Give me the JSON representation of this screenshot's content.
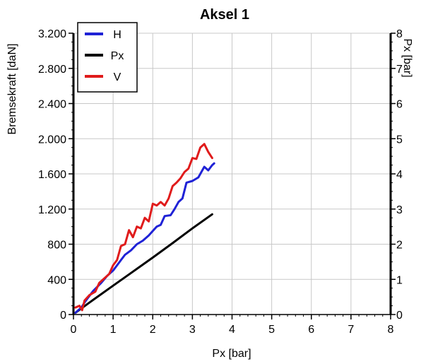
{
  "chart_data": {
    "type": "line",
    "title": "Aksel 1",
    "xlabel": "Px [bar]",
    "ylabel": "Bremsekraft [daN]",
    "y2label": "Px [bar]",
    "xlim": [
      0,
      8
    ],
    "ylim": [
      0,
      3200
    ],
    "y2lim": [
      0,
      8
    ],
    "grid": true,
    "legend_position": "top-left",
    "x_ticks": [
      {
        "value": 0,
        "label": "0"
      },
      {
        "value": 1,
        "label": "1"
      },
      {
        "value": 2,
        "label": "2"
      },
      {
        "value": 3,
        "label": "3"
      },
      {
        "value": 4,
        "label": "4"
      },
      {
        "value": 5,
        "label": "5"
      },
      {
        "value": 6,
        "label": "6"
      },
      {
        "value": 7,
        "label": "7"
      },
      {
        "value": 8,
        "label": "8"
      }
    ],
    "y_ticks": [
      {
        "value": 0,
        "label": "0"
      },
      {
        "value": 400,
        "label": "400"
      },
      {
        "value": 800,
        "label": "800"
      },
      {
        "value": 1200,
        "label": "1.200"
      },
      {
        "value": 1600,
        "label": "1.600"
      },
      {
        "value": 2000,
        "label": "2.000"
      },
      {
        "value": 2400,
        "label": "2.400"
      },
      {
        "value": 2800,
        "label": "2.800"
      },
      {
        "value": 3200,
        "label": "3.200"
      }
    ],
    "y2_ticks": [
      {
        "value": 0,
        "label": "0"
      },
      {
        "value": 1,
        "label": "1"
      },
      {
        "value": 2,
        "label": "2"
      },
      {
        "value": 3,
        "label": "3"
      },
      {
        "value": 4,
        "label": "4"
      },
      {
        "value": 5,
        "label": "5"
      },
      {
        "value": 6,
        "label": "6"
      },
      {
        "value": 7,
        "label": "7"
      },
      {
        "value": 8,
        "label": "8"
      }
    ],
    "series": [
      {
        "name": "H",
        "color": "#1f22d6",
        "axis": "left",
        "x": [
          0.05,
          0.2,
          0.3,
          0.5,
          0.7,
          0.85,
          1.0,
          1.1,
          1.2,
          1.3,
          1.45,
          1.6,
          1.75,
          1.9,
          2.0,
          2.1,
          2.2,
          2.3,
          2.45,
          2.55,
          2.65,
          2.75,
          2.85,
          3.0,
          3.15,
          3.3,
          3.4,
          3.5,
          3.55
        ],
        "y": [
          20,
          80,
          150,
          270,
          360,
          440,
          500,
          560,
          620,
          680,
          730,
          800,
          840,
          900,
          950,
          1000,
          1020,
          1120,
          1130,
          1200,
          1280,
          1320,
          1500,
          1520,
          1560,
          1680,
          1640,
          1700,
          1720
        ]
      },
      {
        "name": "Px",
        "color": "#000000",
        "axis": "right",
        "x": [
          0.05,
          0.5,
          1.0,
          1.5,
          2.0,
          2.5,
          3.0,
          3.5
        ],
        "y": [
          0.05,
          0.42,
          0.82,
          1.22,
          1.62,
          2.03,
          2.45,
          2.85
        ]
      },
      {
        "name": "V",
        "color": "#e01b1b",
        "axis": "left",
        "x": [
          0.05,
          0.15,
          0.22,
          0.28,
          0.4,
          0.55,
          0.65,
          0.8,
          0.9,
          1.0,
          1.1,
          1.2,
          1.3,
          1.4,
          1.5,
          1.6,
          1.7,
          1.8,
          1.9,
          2.0,
          2.1,
          2.2,
          2.3,
          2.4,
          2.5,
          2.6,
          2.7,
          2.8,
          2.9,
          3.0,
          3.1,
          3.2,
          3.3,
          3.4,
          3.5
        ],
        "y": [
          80,
          100,
          50,
          160,
          220,
          260,
          360,
          420,
          460,
          560,
          620,
          780,
          800,
          960,
          880,
          1000,
          980,
          1100,
          1060,
          1260,
          1240,
          1280,
          1240,
          1320,
          1460,
          1500,
          1550,
          1620,
          1660,
          1780,
          1770,
          1900,
          1940,
          1850,
          1780
        ]
      }
    ]
  }
}
